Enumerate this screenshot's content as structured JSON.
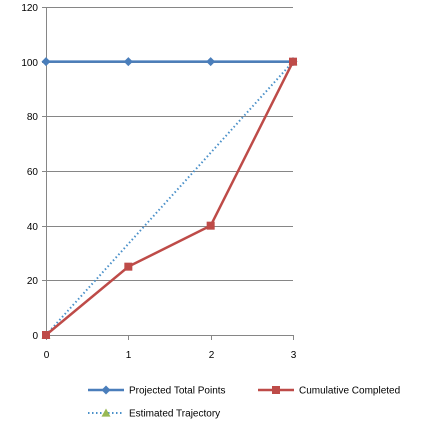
{
  "chart_data": {
    "type": "line",
    "x": [
      0,
      1,
      2,
      3
    ],
    "xlim": [
      0,
      3
    ],
    "ylim": [
      0,
      120
    ],
    "yticks": [
      0,
      20,
      40,
      60,
      80,
      100,
      120
    ],
    "xticks": [
      0,
      1,
      2,
      3
    ],
    "grid": true,
    "legend_position": "bottom",
    "series": [
      {
        "name": "Projected Total Points",
        "values": [
          100,
          100,
          100,
          100
        ],
        "color": "#4a7ebb",
        "marker": "diamond",
        "line_style": "solid"
      },
      {
        "name": "Cumulative Completed",
        "values": [
          0,
          25,
          40,
          100
        ],
        "color": "#be4b48",
        "marker": "square",
        "line_style": "solid"
      },
      {
        "name": "Estimated Trajectory",
        "values": [
          0,
          100
        ],
        "x": [
          0,
          3
        ],
        "color": "#4a90c9",
        "marker": "triangle",
        "marker_color": "#98b954",
        "line_style": "dotted"
      }
    ]
  }
}
